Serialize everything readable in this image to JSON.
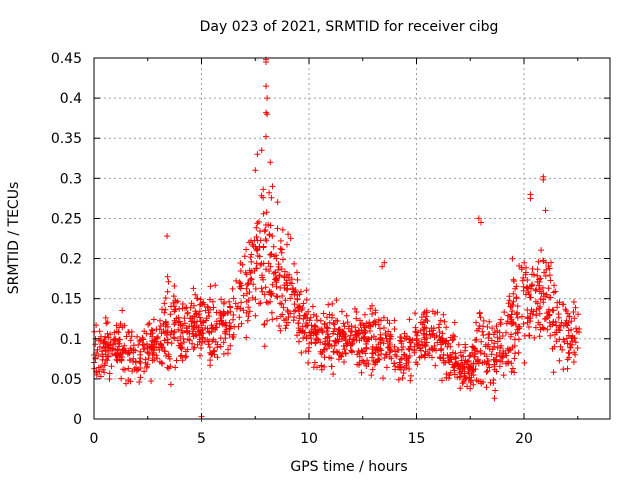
{
  "chart_data": {
    "type": "scatter",
    "title": "Day 023 of 2021, SRMTID for receiver cibg",
    "xlabel": "GPS time / hours",
    "ylabel": "SRMTID / TECUs",
    "xlim": [
      0,
      24
    ],
    "ylim": [
      0,
      0.45
    ],
    "xticks": [
      "0",
      "5",
      "10",
      "15",
      "20"
    ],
    "xtick_values": [
      0,
      5,
      10,
      15,
      20
    ],
    "yticks": [
      "0",
      "0.05",
      "0.1",
      "0.15",
      "0.2",
      "0.25",
      "0.3",
      "0.35",
      "0.4",
      "0.45"
    ],
    "ytick_values": [
      0,
      0.05,
      0.1,
      0.15,
      0.2,
      0.25,
      0.3,
      0.35,
      0.4,
      0.45
    ],
    "grid": true,
    "marker": "+",
    "color": "#ff0000",
    "series": [
      {
        "name": "SRMTID",
        "profile": [
          [
            0.0,
            0.09,
            0.035
          ],
          [
            0.5,
            0.085,
            0.03
          ],
          [
            1.0,
            0.09,
            0.03
          ],
          [
            1.5,
            0.085,
            0.03
          ],
          [
            2.0,
            0.08,
            0.025
          ],
          [
            2.5,
            0.085,
            0.03
          ],
          [
            3.0,
            0.095,
            0.035
          ],
          [
            3.5,
            0.12,
            0.05
          ],
          [
            4.0,
            0.1,
            0.04
          ],
          [
            4.5,
            0.12,
            0.035
          ],
          [
            5.0,
            0.12,
            0.04
          ],
          [
            5.5,
            0.11,
            0.04
          ],
          [
            6.0,
            0.12,
            0.04
          ],
          [
            6.5,
            0.13,
            0.04
          ],
          [
            7.0,
            0.16,
            0.05
          ],
          [
            7.5,
            0.2,
            0.07
          ],
          [
            8.0,
            0.2,
            0.08
          ],
          [
            8.5,
            0.18,
            0.07
          ],
          [
            9.0,
            0.16,
            0.05
          ],
          [
            9.5,
            0.13,
            0.04
          ],
          [
            10.0,
            0.11,
            0.035
          ],
          [
            10.5,
            0.1,
            0.03
          ],
          [
            11.0,
            0.1,
            0.035
          ],
          [
            11.5,
            0.1,
            0.03
          ],
          [
            12.0,
            0.1,
            0.035
          ],
          [
            12.5,
            0.1,
            0.03
          ],
          [
            13.0,
            0.1,
            0.035
          ],
          [
            13.5,
            0.095,
            0.04
          ],
          [
            14.0,
            0.085,
            0.03
          ],
          [
            14.5,
            0.08,
            0.03
          ],
          [
            15.0,
            0.095,
            0.035
          ],
          [
            15.5,
            0.11,
            0.035
          ],
          [
            16.0,
            0.1,
            0.035
          ],
          [
            16.5,
            0.08,
            0.03
          ],
          [
            17.0,
            0.07,
            0.025
          ],
          [
            17.5,
            0.06,
            0.025
          ],
          [
            18.0,
            0.09,
            0.05
          ],
          [
            18.5,
            0.08,
            0.04
          ],
          [
            19.0,
            0.09,
            0.05
          ],
          [
            19.5,
            0.12,
            0.06
          ],
          [
            20.0,
            0.15,
            0.06
          ],
          [
            20.5,
            0.14,
            0.06
          ],
          [
            21.0,
            0.16,
            0.07
          ],
          [
            21.5,
            0.12,
            0.05
          ],
          [
            22.0,
            0.1,
            0.04
          ],
          [
            22.5,
            0.1,
            0.035
          ]
        ],
        "outliers": [
          [
            8.0,
            0.448
          ],
          [
            8.0,
            0.445
          ],
          [
            8.0,
            0.415
          ],
          [
            8.05,
            0.4
          ],
          [
            8.0,
            0.382
          ],
          [
            8.05,
            0.38
          ],
          [
            8.0,
            0.352
          ],
          [
            7.8,
            0.335
          ],
          [
            7.6,
            0.33
          ],
          [
            8.2,
            0.32
          ],
          [
            7.5,
            0.31
          ],
          [
            8.3,
            0.29
          ],
          [
            5.0,
            0.003
          ],
          [
            5.0,
            0.0
          ],
          [
            3.4,
            0.228
          ],
          [
            13.5,
            0.195
          ],
          [
            13.4,
            0.19
          ],
          [
            20.9,
            0.302
          ],
          [
            20.9,
            0.298
          ],
          [
            20.3,
            0.28
          ],
          [
            20.3,
            0.275
          ],
          [
            21.0,
            0.26
          ],
          [
            17.9,
            0.25
          ],
          [
            18.0,
            0.245
          ]
        ],
        "x_start": 0,
        "x_end": 22.6,
        "n_points": 1700
      }
    ]
  }
}
